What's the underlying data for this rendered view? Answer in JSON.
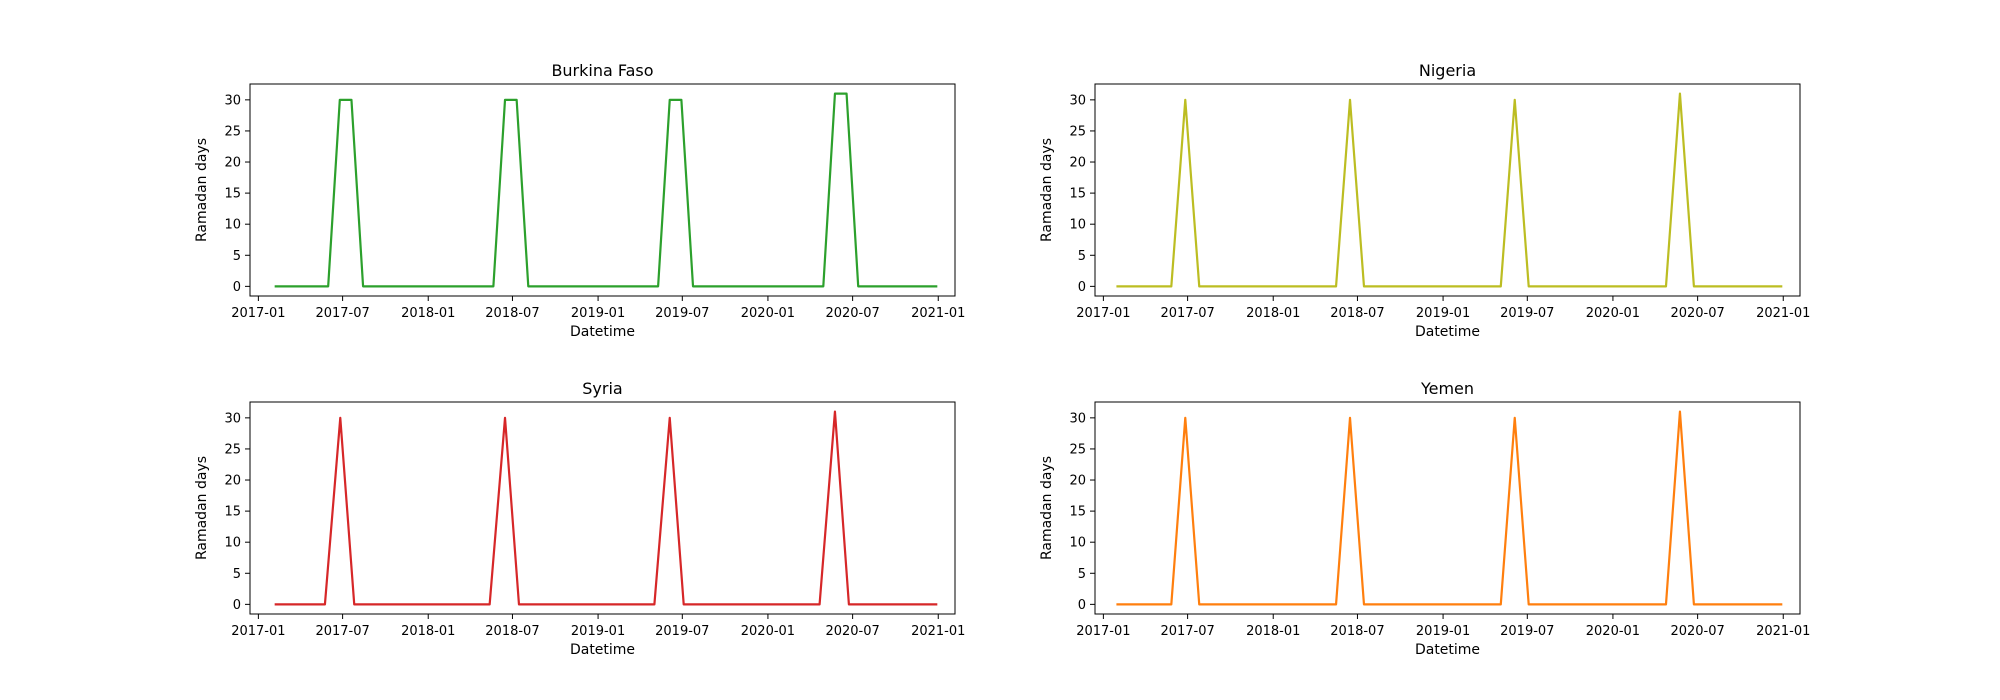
{
  "chart_data": [
    {
      "type": "line",
      "title": "Burkina Faso",
      "xlabel": "Datetime",
      "ylabel": "Ramadan days",
      "color": "#2ca02c",
      "xlim": [
        "2016-12-14",
        "2021-02-06"
      ],
      "ylim": [
        -1.55,
        32.55
      ],
      "xticks": [
        "2017-01",
        "2017-07",
        "2018-01",
        "2018-07",
        "2019-01",
        "2019-07",
        "2020-01",
        "2020-07",
        "2021-01"
      ],
      "yticks": [
        0,
        5,
        10,
        15,
        20,
        25,
        30
      ],
      "grid": false,
      "series": [
        {
          "x": [
            "2017-02-05",
            "2017-05-31",
            "2017-06-25",
            "2017-07-20",
            "2017-08-14",
            "2018-05-21",
            "2018-06-15",
            "2018-07-10",
            "2018-08-04",
            "2019-05-10",
            "2019-06-04",
            "2019-06-29",
            "2019-07-24",
            "2020-04-29",
            "2020-05-24",
            "2020-06-18",
            "2020-07-13",
            "2020-12-30"
          ],
          "y": [
            0,
            0,
            30,
            30,
            0,
            0,
            30,
            30,
            0,
            0,
            30,
            30,
            0,
            0,
            31,
            31,
            0,
            0
          ]
        }
      ]
    },
    {
      "type": "line",
      "title": "Nigeria",
      "xlabel": "Datetime",
      "ylabel": "Ramadan days",
      "color": "#bcbd22",
      "xlim": [
        "2016-12-14",
        "2021-02-06"
      ],
      "ylim": [
        -1.55,
        32.55
      ],
      "xticks": [
        "2017-01",
        "2017-07",
        "2018-01",
        "2018-07",
        "2019-01",
        "2019-07",
        "2020-01",
        "2020-07",
        "2021-01"
      ],
      "yticks": [
        0,
        5,
        10,
        15,
        20,
        25,
        30
      ],
      "grid": false,
      "series": [
        {
          "x": [
            "2017-01-29",
            "2017-05-27",
            "2017-06-26",
            "2017-07-26",
            "2018-05-16",
            "2018-06-15",
            "2018-07-15",
            "2019-05-05",
            "2019-06-04",
            "2019-07-04",
            "2020-04-24",
            "2020-05-24",
            "2020-06-23",
            "2020-12-30"
          ],
          "y": [
            0,
            0,
            30,
            0,
            0,
            30,
            0,
            0,
            30,
            0,
            0,
            31,
            0,
            0
          ]
        }
      ]
    },
    {
      "type": "line",
      "title": "Syria",
      "xlabel": "Datetime",
      "ylabel": "Ramadan days",
      "color": "#d62728",
      "xlim": [
        "2016-12-14",
        "2021-02-06"
      ],
      "ylim": [
        -1.55,
        32.55
      ],
      "xticks": [
        "2017-01",
        "2017-07",
        "2018-01",
        "2018-07",
        "2019-01",
        "2019-07",
        "2020-01",
        "2020-07",
        "2021-01"
      ],
      "yticks": [
        0,
        5,
        10,
        15,
        20,
        25,
        30
      ],
      "grid": false,
      "series": [
        {
          "x": [
            "2017-02-05",
            "2017-05-24",
            "2017-06-26",
            "2017-07-26",
            "2018-05-13",
            "2018-06-15",
            "2018-07-15",
            "2019-05-02",
            "2019-06-04",
            "2019-07-04",
            "2020-04-21",
            "2020-05-24",
            "2020-06-23",
            "2020-12-30"
          ],
          "y": [
            0,
            0,
            30,
            0,
            0,
            30,
            0,
            0,
            30,
            0,
            0,
            31,
            0,
            0
          ]
        }
      ]
    },
    {
      "type": "line",
      "title": "Yemen",
      "xlabel": "Datetime",
      "ylabel": "Ramadan days",
      "color": "#ff7f0e",
      "xlim": [
        "2016-12-14",
        "2021-02-06"
      ],
      "ylim": [
        -1.55,
        32.55
      ],
      "xticks": [
        "2017-01",
        "2017-07",
        "2018-01",
        "2018-07",
        "2019-01",
        "2019-07",
        "2020-01",
        "2020-07",
        "2021-01"
      ],
      "yticks": [
        0,
        5,
        10,
        15,
        20,
        25,
        30
      ],
      "grid": false,
      "series": [
        {
          "x": [
            "2017-01-29",
            "2017-05-27",
            "2017-06-26",
            "2017-07-26",
            "2018-05-16",
            "2018-06-15",
            "2018-07-15",
            "2019-05-05",
            "2019-06-04",
            "2019-07-04",
            "2020-04-24",
            "2020-05-24",
            "2020-06-23",
            "2020-12-30"
          ],
          "y": [
            0,
            0,
            30,
            0,
            0,
            30,
            0,
            0,
            30,
            0,
            0,
            31,
            0,
            0
          ]
        }
      ]
    }
  ]
}
